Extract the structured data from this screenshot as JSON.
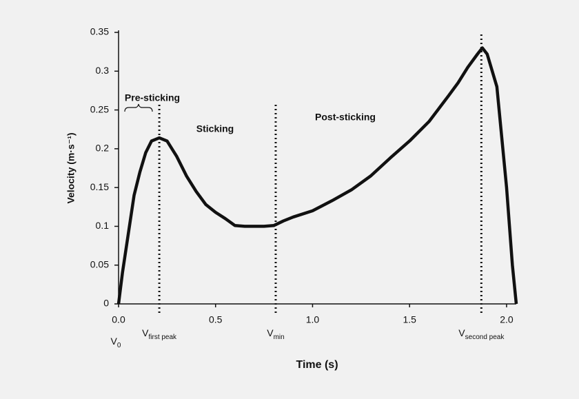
{
  "chart_data": {
    "type": "line",
    "xlabel": "Time (s)",
    "ylabel": "Velocity (m·s⁻¹)",
    "x": [
      0,
      0.02,
      0.05,
      0.08,
      0.11,
      0.14,
      0.17,
      0.21,
      0.25,
      0.3,
      0.35,
      0.4,
      0.45,
      0.5,
      0.55,
      0.6,
      0.65,
      0.7,
      0.75,
      0.8,
      0.85,
      0.9,
      1.0,
      1.1,
      1.2,
      1.3,
      1.4,
      1.5,
      1.6,
      1.7,
      1.75,
      1.8,
      1.85,
      1.875,
      1.9,
      1.95,
      2.0,
      2.03,
      2.05
    ],
    "series": [
      {
        "color": "#111111",
        "values": [
          0,
          0.04,
          0.09,
          0.14,
          0.17,
          0.195,
          0.21,
          0.214,
          0.21,
          0.19,
          0.165,
          0.145,
          0.128,
          0.118,
          0.11,
          0.101,
          0.1,
          0.1,
          0.1,
          0.101,
          0.107,
          0.112,
          0.12,
          0.133,
          0.147,
          0.165,
          0.188,
          0.21,
          0.235,
          0.268,
          0.285,
          0.305,
          0.322,
          0.33,
          0.322,
          0.28,
          0.15,
          0.05,
          0
        ]
      }
    ],
    "xlim": [
      0,
      2.05
    ],
    "ylim": [
      0,
      0.35
    ],
    "xticks": [
      {
        "value": 0,
        "label": "0.0"
      },
      0.5,
      {
        "value": 1,
        "label": "1.0"
      },
      1.5,
      {
        "value": 2,
        "label": "2.0"
      }
    ],
    "yticks": [
      0,
      0.05,
      0.1,
      0.15,
      0.2,
      0.25,
      0.3,
      0.35
    ],
    "phases": [
      "Pre-sticking",
      "Sticking",
      "Post-sticking"
    ],
    "markers": [
      {
        "text": "V",
        "sub": "0",
        "x": 0
      },
      {
        "text": "V",
        "sub": "first peak",
        "x": 0.21
      },
      {
        "text": "V",
        "sub": "min",
        "x": 0.81
      },
      {
        "text": "V",
        "sub": "second peak",
        "x": 1.87
      }
    ]
  }
}
